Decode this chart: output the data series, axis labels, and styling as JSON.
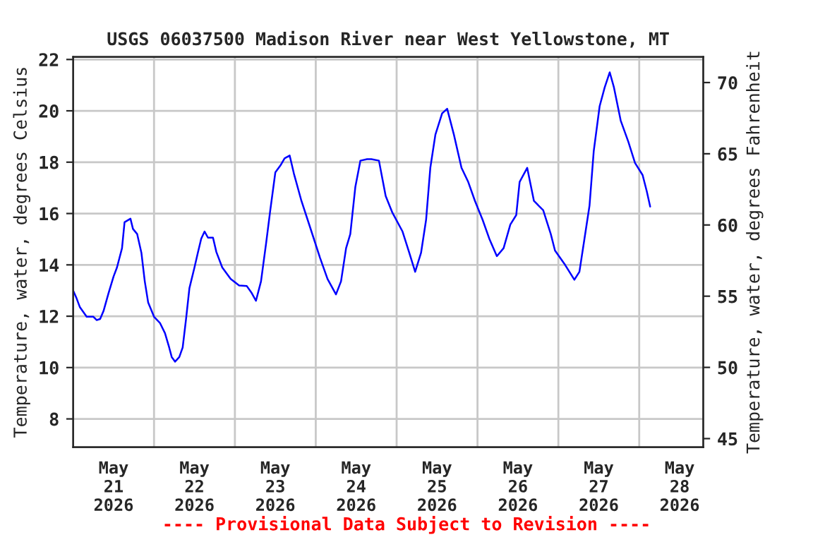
{
  "chart_data": {
    "type": "line",
    "title": "USGS 06037500 Madison River near West Yellowstone, MT",
    "ylabel": "Temperature, water, degrees Celsius",
    "y2label": "Temperature, water, degrees Fahrenheit",
    "annotations": [
      "---- Provisional Data Subject to Revision ----"
    ],
    "x": [
      "2026-05-21T00:00",
      "2026-05-21T01:00",
      "2026-05-21T02:00",
      "2026-05-21T04:00",
      "2026-05-21T06:00",
      "2026-05-21T07:00",
      "2026-05-21T08:00",
      "2026-05-21T09:00",
      "2026-05-21T10:30",
      "2026-05-21T12:00",
      "2026-05-21T13:00",
      "2026-05-21T14:30",
      "2026-05-21T15:15",
      "2026-05-21T17:00",
      "2026-05-21T17:45",
      "2026-05-21T19:00",
      "2026-05-21T20:15",
      "2026-05-21T21:15",
      "2026-05-21T22:15",
      "2026-05-22T00:00",
      "2026-05-22T01:45",
      "2026-05-22T03:15",
      "2026-05-22T04:30",
      "2026-05-22T05:15",
      "2026-05-22T06:15",
      "2026-05-22T07:30",
      "2026-05-22T08:30",
      "2026-05-22T09:30",
      "2026-05-22T10:30",
      "2026-05-22T12:00",
      "2026-05-22T13:00",
      "2026-05-22T14:00",
      "2026-05-22T15:00",
      "2026-05-22T16:00",
      "2026-05-22T17:30",
      "2026-05-22T18:30",
      "2026-05-22T20:15",
      "2026-05-22T22:45",
      "2026-05-23T01:15",
      "2026-05-23T03:30",
      "2026-05-23T05:00",
      "2026-05-23T06:15",
      "2026-05-23T07:45",
      "2026-05-23T09:15",
      "2026-05-23T10:30",
      "2026-05-23T12:00",
      "2026-05-23T13:30",
      "2026-05-23T14:45",
      "2026-05-23T16:15",
      "2026-05-23T17:30",
      "2026-05-23T19:45",
      "2026-05-23T22:30",
      "2026-05-24T01:15",
      "2026-05-24T03:30",
      "2026-05-24T06:00",
      "2026-05-24T07:30",
      "2026-05-24T09:00",
      "2026-05-24T10:15",
      "2026-05-24T11:45",
      "2026-05-24T13:15",
      "2026-05-24T15:15",
      "2026-05-24T16:30",
      "2026-05-24T18:45",
      "2026-05-24T20:45",
      "2026-05-24T22:45",
      "2026-05-25T01:45",
      "2026-05-25T03:45",
      "2026-05-25T05:30",
      "2026-05-25T07:15",
      "2026-05-25T08:45",
      "2026-05-25T10:00",
      "2026-05-25T11:30",
      "2026-05-25T13:30",
      "2026-05-25T15:00",
      "2026-05-25T17:00",
      "2026-05-25T19:15",
      "2026-05-25T21:15",
      "2026-05-25T23:15",
      "2026-05-26T01:30",
      "2026-05-26T03:30",
      "2026-05-26T05:45",
      "2026-05-26T07:45",
      "2026-05-26T09:45",
      "2026-05-26T11:30",
      "2026-05-26T12:30",
      "2026-05-26T14:45",
      "2026-05-26T16:45",
      "2026-05-26T19:30",
      "2026-05-26T21:45",
      "2026-05-26T23:00",
      "2026-05-27T02:00",
      "2026-05-27T04:45",
      "2026-05-27T06:15",
      "2026-05-27T07:45",
      "2026-05-27T09:15",
      "2026-05-27T10:30",
      "2026-05-27T12:15",
      "2026-05-27T13:45",
      "2026-05-27T15:15",
      "2026-05-27T16:30",
      "2026-05-27T18:30",
      "2026-05-27T20:45",
      "2026-05-27T22:45",
      "2026-05-28T01:00",
      "2026-05-28T02:15",
      "2026-05-28T03:15"
    ],
    "series": [
      {
        "color": "#0000ff",
        "values": [
          13.0,
          12.7,
          12.35,
          11.98,
          11.98,
          11.85,
          11.89,
          12.2,
          12.9,
          13.55,
          13.9,
          14.65,
          15.66,
          15.8,
          15.4,
          15.2,
          14.47,
          13.36,
          12.54,
          11.98,
          11.74,
          11.34,
          10.78,
          10.41,
          10.23,
          10.41,
          10.78,
          11.89,
          13.09,
          13.9,
          14.47,
          15.02,
          15.3,
          15.06,
          15.06,
          14.5,
          13.9,
          13.45,
          13.2,
          13.18,
          12.9,
          12.6,
          13.36,
          14.83,
          16.13,
          17.6,
          17.87,
          18.15,
          18.26,
          17.56,
          16.49,
          15.39,
          14.28,
          13.45,
          12.85,
          13.36,
          14.65,
          15.2,
          17.04,
          18.06,
          18.12,
          18.12,
          18.06,
          16.68,
          16.03,
          15.3,
          14.47,
          13.73,
          14.47,
          15.76,
          17.78,
          19.07,
          19.9,
          20.08,
          19.07,
          17.78,
          17.23,
          16.49,
          15.76,
          15.02,
          14.34,
          14.65,
          15.57,
          15.94,
          17.23,
          17.78,
          16.49,
          16.13,
          15.2,
          14.56,
          14.0,
          13.42,
          13.73,
          15.02,
          16.31,
          18.43,
          20.18,
          20.91,
          21.5,
          20.91,
          19.62,
          18.8,
          17.97,
          17.5,
          16.86,
          16.27
        ]
      }
    ],
    "xlim": [
      "2026-05-21T00:00",
      "2026-05-28T19:00"
    ],
    "xticks": [
      {
        "value": "2026-05-21T12:00",
        "label": "May\n21\n2026"
      },
      {
        "value": "2026-05-22T00:00",
        "label": null
      },
      {
        "value": "2026-05-22T12:00",
        "label": "May\n22\n2026"
      },
      {
        "value": "2026-05-23T00:00",
        "label": null
      },
      {
        "value": "2026-05-23T12:00",
        "label": "May\n23\n2026"
      },
      {
        "value": "2026-05-24T00:00",
        "label": null
      },
      {
        "value": "2026-05-24T12:00",
        "label": "May\n24\n2026"
      },
      {
        "value": "2026-05-25T00:00",
        "label": null
      },
      {
        "value": "2026-05-25T12:00",
        "label": "May\n25\n2026"
      },
      {
        "value": "2026-05-26T00:00",
        "label": null
      },
      {
        "value": "2026-05-26T12:00",
        "label": "May\n26\n2026"
      },
      {
        "value": "2026-05-27T00:00",
        "label": null
      },
      {
        "value": "2026-05-27T12:00",
        "label": "May\n27\n2026"
      },
      {
        "value": "2026-05-28T00:00",
        "label": null
      },
      {
        "value": "2026-05-28T12:00",
        "label": "May\n28\n2026"
      }
    ],
    "ylim": [
      6.9,
      22.1
    ],
    "yticks": [
      8,
      10,
      12,
      14,
      16,
      18,
      20,
      22
    ],
    "y2lim": [
      44.4,
      71.8
    ],
    "y2ticks": [
      45,
      50,
      55,
      60,
      65,
      70
    ],
    "grid": true,
    "line_style": "solid"
  }
}
